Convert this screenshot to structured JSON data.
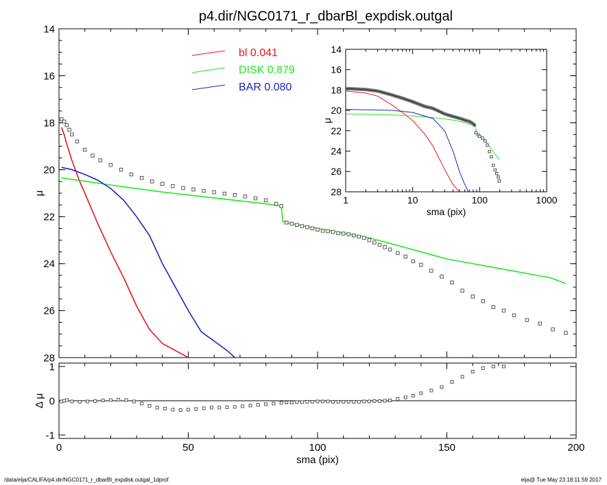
{
  "page": {
    "title": "p4.dir/NGC0171_r_dbarBl_expdisk.outgal",
    "footer_left": "/data/eija/CALIFA/p4.dir/NGC0171_r_dbarBl_expdisk.outgal_1dprof",
    "footer_right": "eija@  Tue May 23 18:11:59 2017"
  },
  "colors": {
    "bl": "#e8141a",
    "disk": "#1ee81e",
    "bar": "#1428b4",
    "data": "#555555",
    "axis": "#000000"
  },
  "chart_data": [
    {
      "id": "main",
      "type": "line",
      "title": "p4.dir/NGC0171_r_dbarBl_expdisk.outgal",
      "xlabel": "",
      "ylabel": "μ",
      "xlim": [
        0,
        200
      ],
      "ylim": [
        28,
        14
      ],
      "y_inverted": true,
      "xticks": [
        0,
        50,
        100,
        150,
        200
      ],
      "yticks": [
        14,
        16,
        18,
        20,
        22,
        24,
        26,
        28
      ],
      "legend": {
        "placement": "top-center",
        "entries": [
          {
            "key": "bl",
            "label": "bl",
            "value": "0.041"
          },
          {
            "key": "disk",
            "label": "DISK",
            "value": "0.879"
          },
          {
            "key": "bar",
            "label": "BAR",
            "value": "0.080"
          }
        ]
      },
      "series": [
        {
          "name": "bl",
          "key": "bl",
          "style": "line",
          "x": [
            1,
            2,
            3,
            5,
            8,
            10,
            15,
            20,
            25,
            30,
            35,
            40,
            45,
            50
          ],
          "y": [
            18.2,
            18.5,
            18.9,
            19.6,
            20.5,
            21.0,
            22.3,
            23.5,
            24.6,
            25.8,
            26.8,
            27.4,
            27.7,
            28.0
          ]
        },
        {
          "name": "DISK",
          "key": "disk",
          "style": "line",
          "x": [
            1,
            20,
            40,
            60,
            80,
            86,
            86.5,
            90,
            100,
            110,
            120,
            130,
            140,
            150,
            160,
            170,
            180,
            190,
            196
          ],
          "y": [
            20.35,
            20.65,
            20.95,
            21.2,
            21.45,
            21.55,
            22.2,
            22.3,
            22.5,
            22.7,
            22.9,
            23.2,
            23.5,
            23.8,
            24.0,
            24.2,
            24.4,
            24.6,
            24.85
          ]
        },
        {
          "name": "BAR",
          "key": "bar",
          "style": "line",
          "x": [
            1,
            5,
            10,
            15,
            20,
            25,
            30,
            35,
            40,
            45,
            50,
            55,
            60,
            65,
            68
          ],
          "y": [
            19.9,
            20.0,
            20.2,
            20.45,
            20.8,
            21.3,
            22.0,
            22.8,
            24.0,
            25.0,
            26.0,
            26.9,
            27.3,
            27.7,
            28.0
          ]
        },
        {
          "name": "data",
          "key": "data",
          "style": "markers",
          "x": [
            1,
            2,
            3,
            4,
            5,
            7,
            10,
            13,
            16,
            20,
            24,
            28,
            32,
            36,
            40,
            44,
            48,
            52,
            56,
            60,
            64,
            68,
            72,
            76,
            80,
            84,
            86,
            88,
            90,
            92,
            94,
            96,
            98,
            100,
            102,
            104,
            106,
            108,
            110,
            112,
            114,
            116,
            118,
            120,
            122,
            124,
            126,
            128,
            131,
            134,
            137,
            140,
            144,
            148,
            152,
            156,
            160,
            164,
            168,
            172,
            176,
            181,
            186,
            191,
            196
          ],
          "y": [
            17.85,
            17.95,
            18.1,
            18.3,
            18.5,
            18.8,
            19.15,
            19.4,
            19.6,
            19.8,
            20.0,
            20.2,
            20.35,
            20.5,
            20.6,
            20.7,
            20.78,
            20.84,
            20.9,
            20.96,
            21.02,
            21.08,
            21.14,
            21.22,
            21.3,
            21.45,
            21.55,
            22.25,
            22.3,
            22.35,
            22.4,
            22.45,
            22.5,
            22.55,
            22.6,
            22.62,
            22.65,
            22.7,
            22.72,
            22.75,
            22.8,
            22.85,
            22.9,
            23.0,
            23.1,
            23.2,
            23.3,
            23.4,
            23.55,
            23.7,
            23.9,
            24.05,
            24.3,
            24.55,
            24.8,
            25.15,
            25.4,
            25.6,
            25.85,
            26.0,
            26.2,
            26.4,
            26.55,
            26.8,
            26.95
          ]
        }
      ]
    },
    {
      "id": "residual",
      "type": "scatter",
      "xlabel": "sma (pix)",
      "ylabel": "Δ μ",
      "xlim": [
        0,
        200
      ],
      "ylim": [
        -1.1,
        1.1
      ],
      "xticks": [
        0,
        50,
        100,
        150,
        200
      ],
      "yticks": [
        -1,
        0,
        1
      ],
      "series": [
        {
          "name": "residual",
          "key": "data",
          "x": [
            1,
            2,
            3,
            5,
            8,
            11,
            14,
            17,
            20,
            23,
            26,
            29,
            32,
            35,
            38,
            41,
            44,
            47,
            50,
            53,
            56,
            59,
            62,
            65,
            68,
            71,
            74,
            77,
            80,
            83,
            86,
            88,
            90,
            92,
            94,
            96,
            98,
            100,
            102,
            104,
            106,
            108,
            110,
            112,
            114,
            116,
            118,
            120,
            122,
            124,
            126,
            128,
            131,
            134,
            137,
            140,
            144,
            148,
            152,
            156,
            160,
            164,
            168,
            172
          ],
          "y": [
            -0.02,
            0.0,
            0.02,
            -0.02,
            -0.03,
            -0.02,
            -0.01,
            0.01,
            0.02,
            0.03,
            0.02,
            -0.02,
            -0.08,
            -0.15,
            -0.2,
            -0.23,
            -0.26,
            -0.27,
            -0.26,
            -0.24,
            -0.22,
            -0.2,
            -0.2,
            -0.19,
            -0.18,
            -0.16,
            -0.14,
            -0.12,
            -0.1,
            -0.08,
            -0.06,
            -0.05,
            -0.05,
            -0.04,
            -0.04,
            -0.03,
            -0.03,
            -0.02,
            -0.02,
            -0.02,
            -0.03,
            -0.03,
            -0.03,
            -0.03,
            -0.03,
            -0.03,
            -0.02,
            -0.02,
            -0.01,
            -0.01,
            0.0,
            0.01,
            0.05,
            0.1,
            0.15,
            0.22,
            0.3,
            0.4,
            0.55,
            0.7,
            0.85,
            0.95,
            1.0,
            1.0
          ]
        }
      ]
    },
    {
      "id": "inset",
      "type": "line",
      "xlabel": "sma (pix)",
      "ylabel": "μ",
      "xscale": "log",
      "xlim": [
        1,
        1000
      ],
      "ylim": [
        28,
        14
      ],
      "y_inverted": true,
      "xticks": [
        1,
        10,
        100,
        1000
      ],
      "yticks": [
        14,
        16,
        18,
        20,
        22,
        24,
        26,
        28
      ],
      "series": [
        {
          "name": "bl",
          "key": "bl",
          "style": "line",
          "x": [
            1,
            2,
            3,
            5,
            7,
            10,
            15,
            20,
            30,
            40,
            50
          ],
          "y": [
            18.1,
            18.3,
            18.6,
            19.5,
            20.2,
            21.0,
            22.3,
            23.5,
            25.8,
            27.3,
            28.0
          ]
        },
        {
          "name": "DISK",
          "key": "disk",
          "style": "line",
          "x": [
            1,
            5,
            10,
            20,
            40,
            60,
            86,
            90,
            120,
            150,
            196
          ],
          "y": [
            20.35,
            20.45,
            20.55,
            20.7,
            20.95,
            21.2,
            21.55,
            22.2,
            22.9,
            23.8,
            24.85
          ]
        },
        {
          "name": "BAR",
          "key": "bar",
          "style": "line",
          "x": [
            1,
            5,
            10,
            20,
            30,
            40,
            50,
            60,
            68
          ],
          "y": [
            19.9,
            20.0,
            20.2,
            20.8,
            22.0,
            24.0,
            26.0,
            27.3,
            28.0
          ]
        },
        {
          "name": "data",
          "key": "data",
          "style": "thickline",
          "x": [
            1,
            2,
            3,
            5,
            7,
            10,
            15,
            20,
            30,
            40,
            50,
            60,
            70,
            80,
            86
          ],
          "y": [
            17.85,
            17.95,
            18.1,
            18.5,
            18.8,
            19.15,
            19.6,
            19.8,
            20.35,
            20.6,
            20.78,
            20.96,
            21.08,
            21.3,
            21.55
          ]
        },
        {
          "name": "data-outer",
          "key": "data",
          "style": "markers",
          "x": [
            88,
            95,
            100,
            110,
            120,
            130,
            140,
            150,
            160,
            170,
            180,
            190,
            196
          ],
          "y": [
            22.2,
            22.4,
            22.55,
            22.72,
            23.0,
            23.4,
            24.05,
            24.55,
            25.4,
            25.85,
            26.2,
            26.55,
            26.95
          ]
        }
      ]
    }
  ]
}
